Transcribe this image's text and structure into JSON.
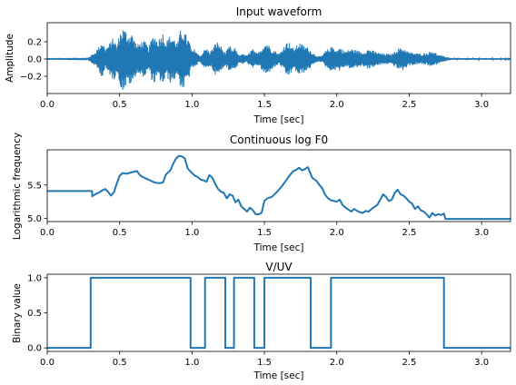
{
  "chart_data": [
    {
      "type": "line",
      "title": "Input waveform",
      "xlabel": "Time [sec]",
      "ylabel": "Amplitude",
      "xlim": [
        0,
        3.2
      ],
      "ylim": [
        -0.4,
        0.42
      ],
      "xticks": [
        0.0,
        0.5,
        1.0,
        1.5,
        2.0,
        2.5,
        3.0
      ],
      "xtick_labels": [
        "0.0",
        "0.5",
        "1.0",
        "1.5",
        "2.0",
        "2.5",
        "3.0"
      ],
      "yticks": [
        -0.2,
        0.0,
        0.2
      ],
      "ytick_labels": [
        "−0.2",
        "0.0",
        "0.2"
      ],
      "grid": false,
      "series": [
        {
          "color": "#1f77b4",
          "envelope": {
            "x": [
              0.0,
              0.28,
              0.3,
              0.33,
              0.36,
              0.38,
              0.4,
              0.43,
              0.46,
              0.48,
              0.5,
              0.52,
              0.54,
              0.56,
              0.58,
              0.6,
              0.62,
              0.65,
              0.68,
              0.7,
              0.72,
              0.74,
              0.76,
              0.78,
              0.8,
              0.82,
              0.85,
              0.88,
              0.9,
              0.92,
              0.94,
              0.96,
              0.98,
              1.0,
              1.02,
              1.04,
              1.06,
              1.08,
              1.1,
              1.12,
              1.14,
              1.17,
              1.2,
              1.23,
              1.26,
              1.28,
              1.3,
              1.32,
              1.35,
              1.38,
              1.4,
              1.42,
              1.44,
              1.46,
              1.48,
              1.5,
              1.52,
              1.55,
              1.58,
              1.6,
              1.62,
              1.64,
              1.66,
              1.68,
              1.7,
              1.72,
              1.74,
              1.76,
              1.78,
              1.8,
              1.83,
              1.86,
              1.88,
              1.9,
              1.92,
              1.95,
              1.98,
              2.0,
              2.02,
              2.04,
              2.06,
              2.1,
              2.14,
              2.18,
              2.22,
              2.26,
              2.3,
              2.34,
              2.38,
              2.42,
              2.46,
              2.5,
              2.54,
              2.58,
              2.62,
              2.66,
              2.7,
              2.74,
              2.8,
              2.9,
              3.0,
              3.1,
              3.2
            ],
            "y": [
              0.01,
              0.015,
              0.04,
              0.08,
              0.15,
              0.22,
              0.12,
              0.18,
              0.26,
              0.14,
              0.3,
              0.37,
              0.34,
              0.28,
              0.32,
              0.24,
              0.16,
              0.21,
              0.2,
              0.12,
              0.24,
              0.29,
              0.22,
              0.26,
              0.31,
              0.2,
              0.28,
              0.24,
              0.18,
              0.33,
              0.36,
              0.27,
              0.22,
              0.09,
              0.12,
              0.06,
              0.04,
              0.1,
              0.13,
              0.08,
              0.12,
              0.21,
              0.15,
              0.07,
              0.16,
              0.1,
              0.13,
              0.05,
              0.06,
              0.04,
              0.09,
              0.12,
              0.07,
              0.08,
              0.13,
              0.18,
              0.19,
              0.12,
              0.09,
              0.06,
              0.1,
              0.17,
              0.21,
              0.18,
              0.12,
              0.15,
              0.2,
              0.17,
              0.15,
              0.14,
              0.08,
              0.04,
              0.03,
              0.04,
              0.09,
              0.13,
              0.15,
              0.1,
              0.14,
              0.11,
              0.09,
              0.12,
              0.1,
              0.08,
              0.12,
              0.09,
              0.07,
              0.06,
              0.06,
              0.12,
              0.13,
              0.08,
              0.07,
              0.06,
              0.07,
              0.1,
              0.05,
              0.03,
              0.01,
              0.01,
              0.01,
              0.01,
              0.01
            ]
          }
        }
      ]
    },
    {
      "type": "line",
      "title": "Continuous log F0",
      "xlabel": "Time [sec]",
      "ylabel": "Logarithmic frequency",
      "xlim": [
        0,
        3.2
      ],
      "ylim": [
        4.95,
        6.03
      ],
      "xticks": [
        0.0,
        0.5,
        1.0,
        1.5,
        2.0,
        2.5,
        3.0
      ],
      "xtick_labels": [
        "0.0",
        "0.5",
        "1.0",
        "1.5",
        "2.0",
        "2.5",
        "3.0"
      ],
      "yticks": [
        5.0,
        5.5
      ],
      "ytick_labels": [
        "5.0",
        "5.5"
      ],
      "grid": false,
      "series": [
        {
          "color": "#1f77b4",
          "x": [
            0.0,
            0.31,
            0.31,
            0.34,
            0.36,
            0.38,
            0.4,
            0.42,
            0.44,
            0.46,
            0.48,
            0.5,
            0.52,
            0.55,
            0.58,
            0.62,
            0.64,
            0.66,
            0.68,
            0.7,
            0.72,
            0.74,
            0.76,
            0.78,
            0.8,
            0.82,
            0.85,
            0.87,
            0.89,
            0.91,
            0.93,
            0.95,
            0.97,
            0.99,
            1.02,
            1.04,
            1.06,
            1.08,
            1.1,
            1.12,
            1.14,
            1.16,
            1.18,
            1.2,
            1.22,
            1.24,
            1.26,
            1.28,
            1.3,
            1.32,
            1.34,
            1.36,
            1.38,
            1.4,
            1.42,
            1.44,
            1.46,
            1.48,
            1.5,
            1.52,
            1.55,
            1.58,
            1.6,
            1.62,
            1.64,
            1.66,
            1.68,
            1.7,
            1.72,
            1.74,
            1.76,
            1.78,
            1.8,
            1.83,
            1.86,
            1.88,
            1.9,
            1.92,
            1.94,
            1.96,
            1.98,
            2.0,
            2.02,
            2.04,
            2.06,
            2.08,
            2.1,
            2.12,
            2.14,
            2.16,
            2.18,
            2.2,
            2.22,
            2.24,
            2.26,
            2.28,
            2.3,
            2.32,
            2.34,
            2.36,
            2.38,
            2.4,
            2.42,
            2.44,
            2.46,
            2.48,
            2.5,
            2.52,
            2.54,
            2.56,
            2.58,
            2.6,
            2.62,
            2.64,
            2.66,
            2.68,
            2.7,
            2.72,
            2.74,
            2.75,
            2.85,
            3.0,
            3.2
          ],
          "y": [
            5.41,
            5.41,
            5.33,
            5.37,
            5.39,
            5.42,
            5.44,
            5.4,
            5.34,
            5.39,
            5.52,
            5.64,
            5.68,
            5.67,
            5.69,
            5.71,
            5.65,
            5.62,
            5.6,
            5.58,
            5.56,
            5.54,
            5.53,
            5.53,
            5.54,
            5.66,
            5.72,
            5.82,
            5.9,
            5.94,
            5.93,
            5.9,
            5.75,
            5.7,
            5.64,
            5.62,
            5.58,
            5.57,
            5.55,
            5.65,
            5.61,
            5.52,
            5.44,
            5.4,
            5.38,
            5.3,
            5.36,
            5.34,
            5.24,
            5.28,
            5.18,
            5.14,
            5.1,
            5.16,
            5.12,
            5.06,
            5.06,
            5.08,
            5.26,
            5.3,
            5.32,
            5.38,
            5.43,
            5.48,
            5.54,
            5.6,
            5.66,
            5.71,
            5.73,
            5.76,
            5.72,
            5.74,
            5.77,
            5.61,
            5.56,
            5.5,
            5.45,
            5.35,
            5.3,
            5.27,
            5.26,
            5.25,
            5.28,
            5.2,
            5.16,
            5.13,
            5.1,
            5.14,
            5.11,
            5.09,
            5.08,
            5.11,
            5.1,
            5.14,
            5.17,
            5.2,
            5.28,
            5.36,
            5.32,
            5.26,
            5.28,
            5.38,
            5.43,
            5.36,
            5.34,
            5.3,
            5.25,
            5.22,
            5.14,
            5.18,
            5.12,
            5.1,
            5.06,
            5.01,
            5.08,
            5.04,
            5.06,
            5.05,
            5.07,
            4.99,
            4.99,
            4.99,
            4.99
          ]
        }
      ]
    },
    {
      "type": "line",
      "title": "V/UV",
      "xlabel": "Time [sec]",
      "ylabel": "Binary value",
      "xlim": [
        0,
        3.2
      ],
      "ylim": [
        -0.05,
        1.05
      ],
      "xticks": [
        0.0,
        0.5,
        1.0,
        1.5,
        2.0,
        2.5,
        3.0
      ],
      "xtick_labels": [
        "0.0",
        "0.5",
        "1.0",
        "1.5",
        "2.0",
        "2.5",
        "3.0"
      ],
      "yticks": [
        0.0,
        0.5,
        1.0
      ],
      "ytick_labels": [
        "0.0",
        "0.5",
        "1.0"
      ],
      "grid": false,
      "series": [
        {
          "color": "#1f77b4",
          "x": [
            0.0,
            0.3,
            0.3,
            0.99,
            0.99,
            1.09,
            1.09,
            1.23,
            1.23,
            1.29,
            1.29,
            1.43,
            1.43,
            1.5,
            1.5,
            1.82,
            1.82,
            1.96,
            1.96,
            2.74,
            2.74,
            3.2
          ],
          "y": [
            0,
            0,
            1,
            1,
            0,
            0,
            1,
            1,
            0,
            0,
            1,
            1,
            0,
            0,
            1,
            1,
            0,
            0,
            1,
            1,
            0,
            0
          ]
        }
      ]
    }
  ]
}
